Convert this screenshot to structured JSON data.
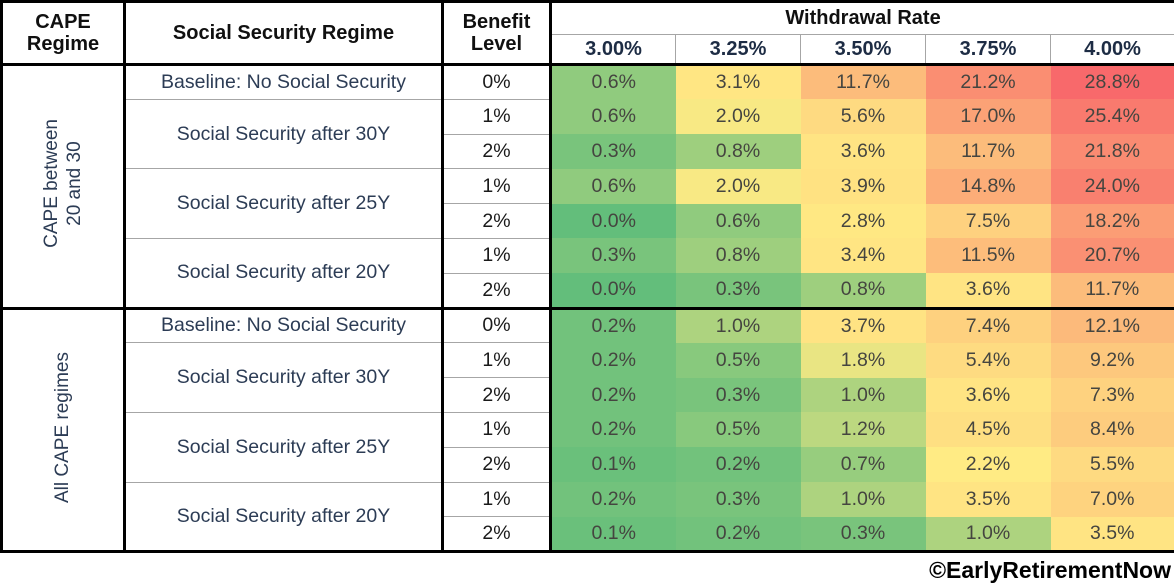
{
  "table": {
    "header": {
      "cape_regime": [
        "CAPE",
        "Regime"
      ],
      "social_security_regime": "Social Security Regime",
      "benefit_level": [
        "Benefit",
        "Level"
      ],
      "withdrawal_rate": "Withdrawal Rate",
      "rates": [
        "3.00%",
        "3.25%",
        "3.50%",
        "3.75%",
        "4.00%"
      ]
    },
    "sections": [
      {
        "cape_label": "CAPE between 20 and 30",
        "cape_label_lines": [
          "CAPE between",
          "20 and 30"
        ],
        "groups": [
          {
            "label": "Baseline: No Social Security",
            "rows": [
              {
                "benefit": "0%",
                "values": [
                  0.6,
                  3.1,
                  11.7,
                  21.2,
                  28.8
                ]
              }
            ]
          },
          {
            "label": "Social Security after 30Y",
            "rows": [
              {
                "benefit": "1%",
                "values": [
                  0.6,
                  2.0,
                  5.6,
                  17.0,
                  25.4
                ]
              },
              {
                "benefit": "2%",
                "values": [
                  0.3,
                  0.8,
                  3.6,
                  11.7,
                  21.8
                ]
              }
            ]
          },
          {
            "label": "Social Security after 25Y",
            "rows": [
              {
                "benefit": "1%",
                "values": [
                  0.6,
                  2.0,
                  3.9,
                  14.8,
                  24.0
                ]
              },
              {
                "benefit": "2%",
                "values": [
                  0.0,
                  0.6,
                  2.8,
                  7.5,
                  18.2
                ]
              }
            ]
          },
          {
            "label": "Social Security after 20Y",
            "rows": [
              {
                "benefit": "1%",
                "values": [
                  0.3,
                  0.8,
                  3.4,
                  11.5,
                  20.7
                ]
              },
              {
                "benefit": "2%",
                "values": [
                  0.0,
                  0.3,
                  0.8,
                  3.6,
                  11.7
                ]
              }
            ]
          }
        ]
      },
      {
        "cape_label": "All CAPE regimes",
        "cape_label_lines": [
          "All CAPE regimes"
        ],
        "groups": [
          {
            "label": "Baseline: No Social Security",
            "rows": [
              {
                "benefit": "0%",
                "values": [
                  0.2,
                  1.0,
                  3.7,
                  7.4,
                  12.1
                ]
              }
            ]
          },
          {
            "label": "Social Security after 30Y",
            "rows": [
              {
                "benefit": "1%",
                "values": [
                  0.2,
                  0.5,
                  1.8,
                  5.4,
                  9.2
                ]
              },
              {
                "benefit": "2%",
                "values": [
                  0.2,
                  0.3,
                  1.0,
                  3.6,
                  7.3
                ]
              }
            ]
          },
          {
            "label": "Social Security after 25Y",
            "rows": [
              {
                "benefit": "1%",
                "values": [
                  0.2,
                  0.5,
                  1.2,
                  4.5,
                  8.4
                ]
              },
              {
                "benefit": "2%",
                "values": [
                  0.1,
                  0.2,
                  0.7,
                  2.2,
                  5.5
                ]
              }
            ]
          },
          {
            "label": "Social Security after 20Y",
            "rows": [
              {
                "benefit": "1%",
                "values": [
                  0.2,
                  0.3,
                  1.0,
                  3.5,
                  7.0
                ]
              },
              {
                "benefit": "2%",
                "values": [
                  0.1,
                  0.2,
                  0.3,
                  1.0,
                  3.5
                ]
              }
            ]
          }
        ]
      }
    ]
  },
  "heatmap": {
    "min_color": "#63BE7B",
    "mid_color": "#FFEB84",
    "max_color": "#F8696B",
    "min_value": 0.0,
    "mid_value": 2.1,
    "max_value": 28.8
  },
  "footer": {
    "credit": "©EarlyRetirementNow"
  },
  "chart_data": {
    "type": "heatmap",
    "column_group_label": "Withdrawal Rate",
    "columns": [
      "3.00%",
      "3.25%",
      "3.50%",
      "3.75%",
      "4.00%"
    ],
    "row_header_labels": [
      "CAPE Regime",
      "Social Security Regime",
      "Benefit Level"
    ],
    "value_unit": "%",
    "color_scale": {
      "min": "#63BE7B",
      "mid": "#FFEB84",
      "max": "#F8696B"
    },
    "rows": [
      {
        "cape_regime": "CAPE between 20 and 30",
        "social_security_regime": "Baseline: No Social Security",
        "benefit_level": "0%",
        "values_pct": [
          0.6,
          3.1,
          11.7,
          21.2,
          28.8
        ]
      },
      {
        "cape_regime": "CAPE between 20 and 30",
        "social_security_regime": "Social Security after 30Y",
        "benefit_level": "1%",
        "values_pct": [
          0.6,
          2.0,
          5.6,
          17.0,
          25.4
        ]
      },
      {
        "cape_regime": "CAPE between 20 and 30",
        "social_security_regime": "Social Security after 30Y",
        "benefit_level": "2%",
        "values_pct": [
          0.3,
          0.8,
          3.6,
          11.7,
          21.8
        ]
      },
      {
        "cape_regime": "CAPE between 20 and 30",
        "social_security_regime": "Social Security after 25Y",
        "benefit_level": "1%",
        "values_pct": [
          0.6,
          2.0,
          3.9,
          14.8,
          24.0
        ]
      },
      {
        "cape_regime": "CAPE between 20 and 30",
        "social_security_regime": "Social Security after 25Y",
        "benefit_level": "2%",
        "values_pct": [
          0.0,
          0.6,
          2.8,
          7.5,
          18.2
        ]
      },
      {
        "cape_regime": "CAPE between 20 and 30",
        "social_security_regime": "Social Security after 20Y",
        "benefit_level": "1%",
        "values_pct": [
          0.3,
          0.8,
          3.4,
          11.5,
          20.7
        ]
      },
      {
        "cape_regime": "CAPE between 20 and 30",
        "social_security_regime": "Social Security after 20Y",
        "benefit_level": "2%",
        "values_pct": [
          0.0,
          0.3,
          0.8,
          3.6,
          11.7
        ]
      },
      {
        "cape_regime": "All CAPE regimes",
        "social_security_regime": "Baseline: No Social Security",
        "benefit_level": "0%",
        "values_pct": [
          0.2,
          1.0,
          3.7,
          7.4,
          12.1
        ]
      },
      {
        "cape_regime": "All CAPE regimes",
        "social_security_regime": "Social Security after 30Y",
        "benefit_level": "1%",
        "values_pct": [
          0.2,
          0.5,
          1.8,
          5.4,
          9.2
        ]
      },
      {
        "cape_regime": "All CAPE regimes",
        "social_security_regime": "Social Security after 30Y",
        "benefit_level": "2%",
        "values_pct": [
          0.2,
          0.3,
          1.0,
          3.6,
          7.3
        ]
      },
      {
        "cape_regime": "All CAPE regimes",
        "social_security_regime": "Social Security after 25Y",
        "benefit_level": "1%",
        "values_pct": [
          0.2,
          0.5,
          1.2,
          4.5,
          8.4
        ]
      },
      {
        "cape_regime": "All CAPE regimes",
        "social_security_regime": "Social Security after 25Y",
        "benefit_level": "2%",
        "values_pct": [
          0.1,
          0.2,
          0.7,
          2.2,
          5.5
        ]
      },
      {
        "cape_regime": "All CAPE regimes",
        "social_security_regime": "Social Security after 20Y",
        "benefit_level": "1%",
        "values_pct": [
          0.2,
          0.3,
          1.0,
          3.5,
          7.0
        ]
      },
      {
        "cape_regime": "All CAPE regimes",
        "social_security_regime": "Social Security after 20Y",
        "benefit_level": "2%",
        "values_pct": [
          0.1,
          0.2,
          0.3,
          1.0,
          3.5
        ]
      }
    ]
  }
}
